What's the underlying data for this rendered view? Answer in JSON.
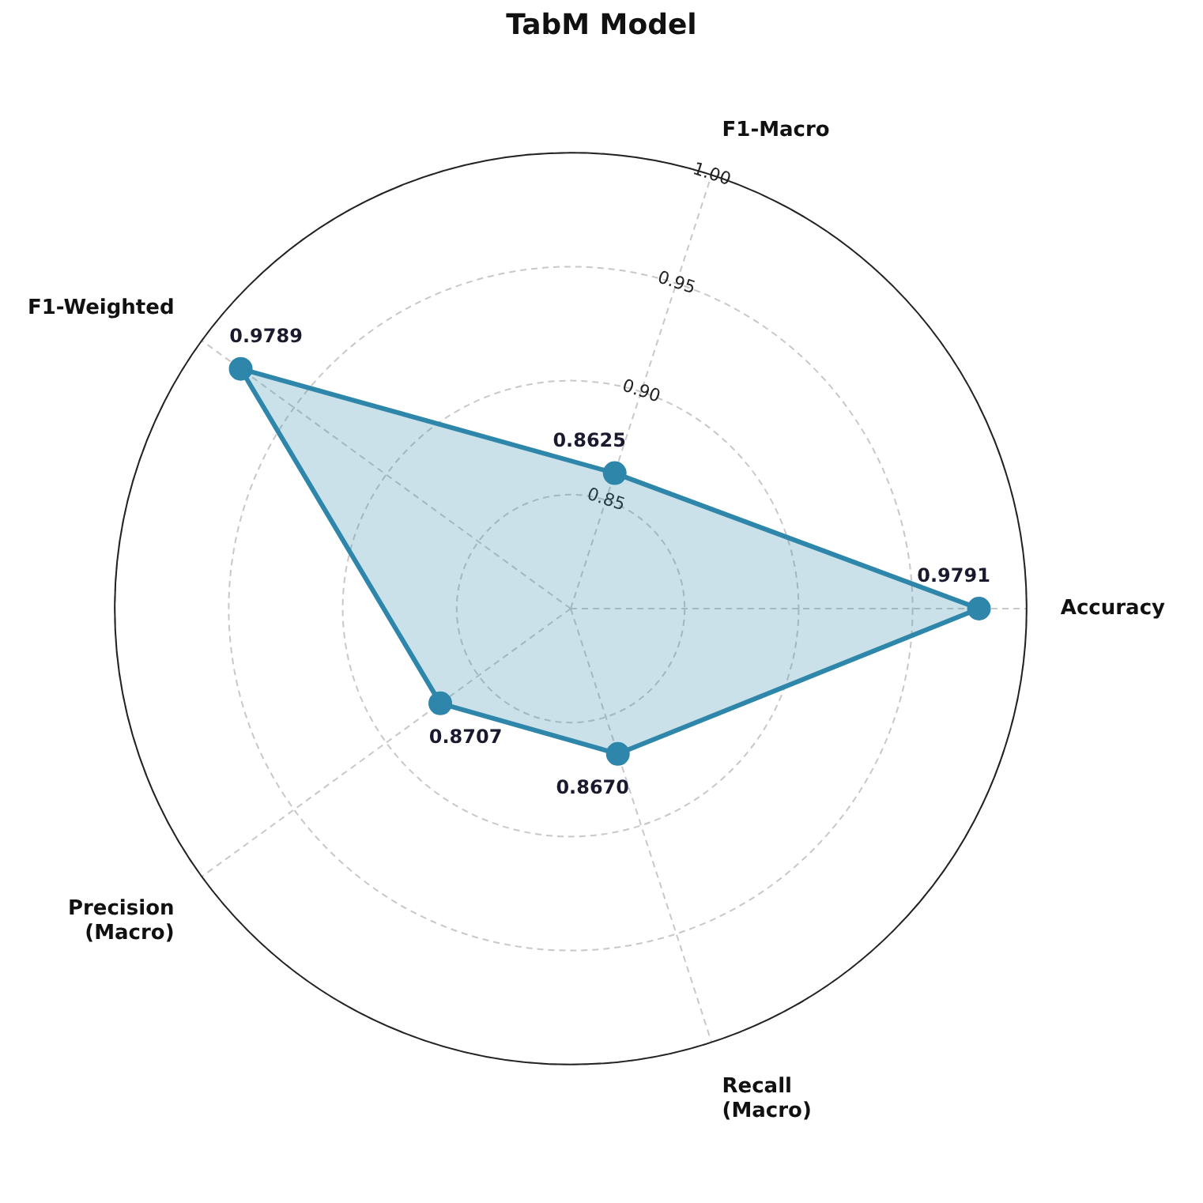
{
  "chart_data": {
    "type": "radar",
    "title": "TabM Model",
    "categories": [
      "F1-Macro",
      "Accuracy",
      "Recall (Macro)",
      "Precision (Macro)",
      "F1-Weighted"
    ],
    "series": [
      {
        "color": "#2e86ab",
        "values": [
          0.8625,
          0.9791,
          0.867,
          0.8707,
          0.9789
        ],
        "value_labels": [
          "0.8625",
          "0.9791",
          "0.8670",
          "0.8707",
          "0.9789"
        ]
      }
    ],
    "ylim": [
      0.8,
      1.0
    ],
    "yticks": [
      0.85,
      {
        "value": 0.9,
        "label": "0.90"
      },
      0.95,
      {
        "value": 1.0,
        "label": "1.00"
      }
    ],
    "grid": true,
    "legend": false,
    "marker": "circle",
    "line_style": "solid"
  }
}
